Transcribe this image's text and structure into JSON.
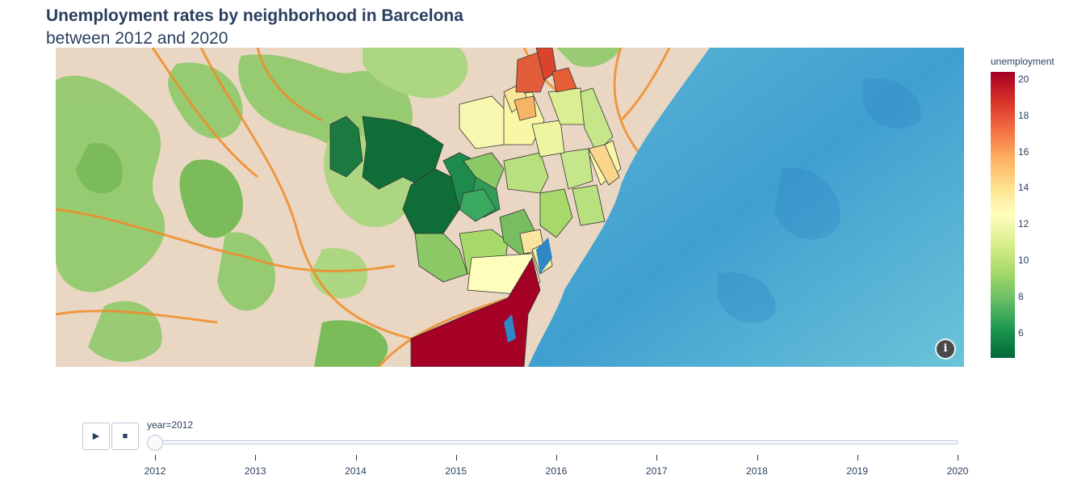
{
  "title": "Unemployment rates by neighborhood in Barcelona",
  "subtitle": "between 2012 and 2020",
  "map": {
    "basemap": "watercolor",
    "land_color": "#ead7c3",
    "vegetation_color": "#8fca6a",
    "sea_color": "#63bcd6",
    "road_color": "#f08c2a",
    "info_icon": "info-icon",
    "info_label": "i"
  },
  "colorbar": {
    "title": "unemployment",
    "colorscale": "RdYlGn_r",
    "range": [
      4.6,
      20.4
    ],
    "ticks": [
      "6",
      "8",
      "10",
      "12",
      "14",
      "16",
      "18",
      "20"
    ],
    "tick_values": [
      6,
      8,
      10,
      12,
      14,
      16,
      18,
      20
    ]
  },
  "animation": {
    "play_label": "▶",
    "play_icon": "play-icon",
    "stop_label": "■",
    "stop_icon": "stop-icon",
    "current_label": "year=2012",
    "current_year": 2012,
    "steps": [
      "2012",
      "2013",
      "2014",
      "2015",
      "2016",
      "2017",
      "2018",
      "2019",
      "2020"
    ]
  },
  "chart_data": {
    "type": "heatmap",
    "variable": "unemployment",
    "frame": "year=2012",
    "note_values": "choropleth of neighborhoods; value range approx 4.6 to 20.4"
  }
}
